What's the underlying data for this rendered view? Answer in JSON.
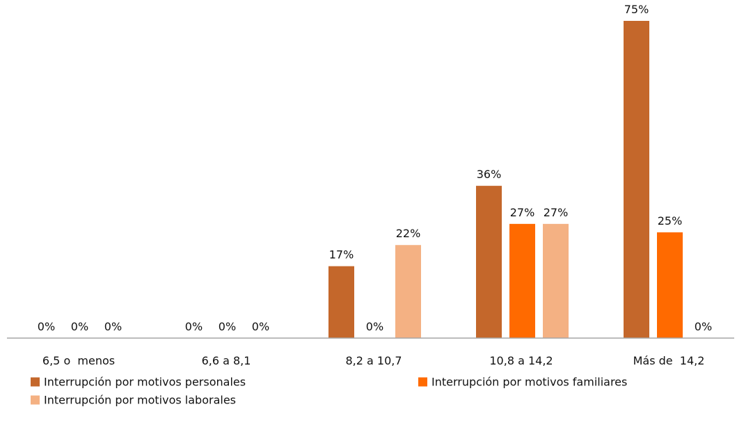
{
  "chart_data": {
    "type": "bar",
    "title": "",
    "xlabel": "",
    "ylabel": "",
    "ylim": [
      0,
      80
    ],
    "grid": false,
    "legend_position": "bottom",
    "value_suffix": "%",
    "categories": [
      "6,5 o  menos",
      "6,6 a 8,1",
      "8,2 a 10,7",
      "10,8 a 14,2",
      "Más de  14,2"
    ],
    "series": [
      {
        "name": "Interrupción por motivos personales",
        "color": "#C4672B",
        "values": [
          0,
          0,
          17,
          36,
          75
        ]
      },
      {
        "name": "Interrupción por motivos familiares",
        "color": "#FF6A00",
        "values": [
          0,
          0,
          0,
          27,
          25
        ]
      },
      {
        "name": "Interrupción por motivos laborales",
        "color": "#F4B183",
        "values": [
          0,
          0,
          22,
          27,
          0
        ]
      }
    ],
    "axis_color": "#A6A6A6"
  }
}
